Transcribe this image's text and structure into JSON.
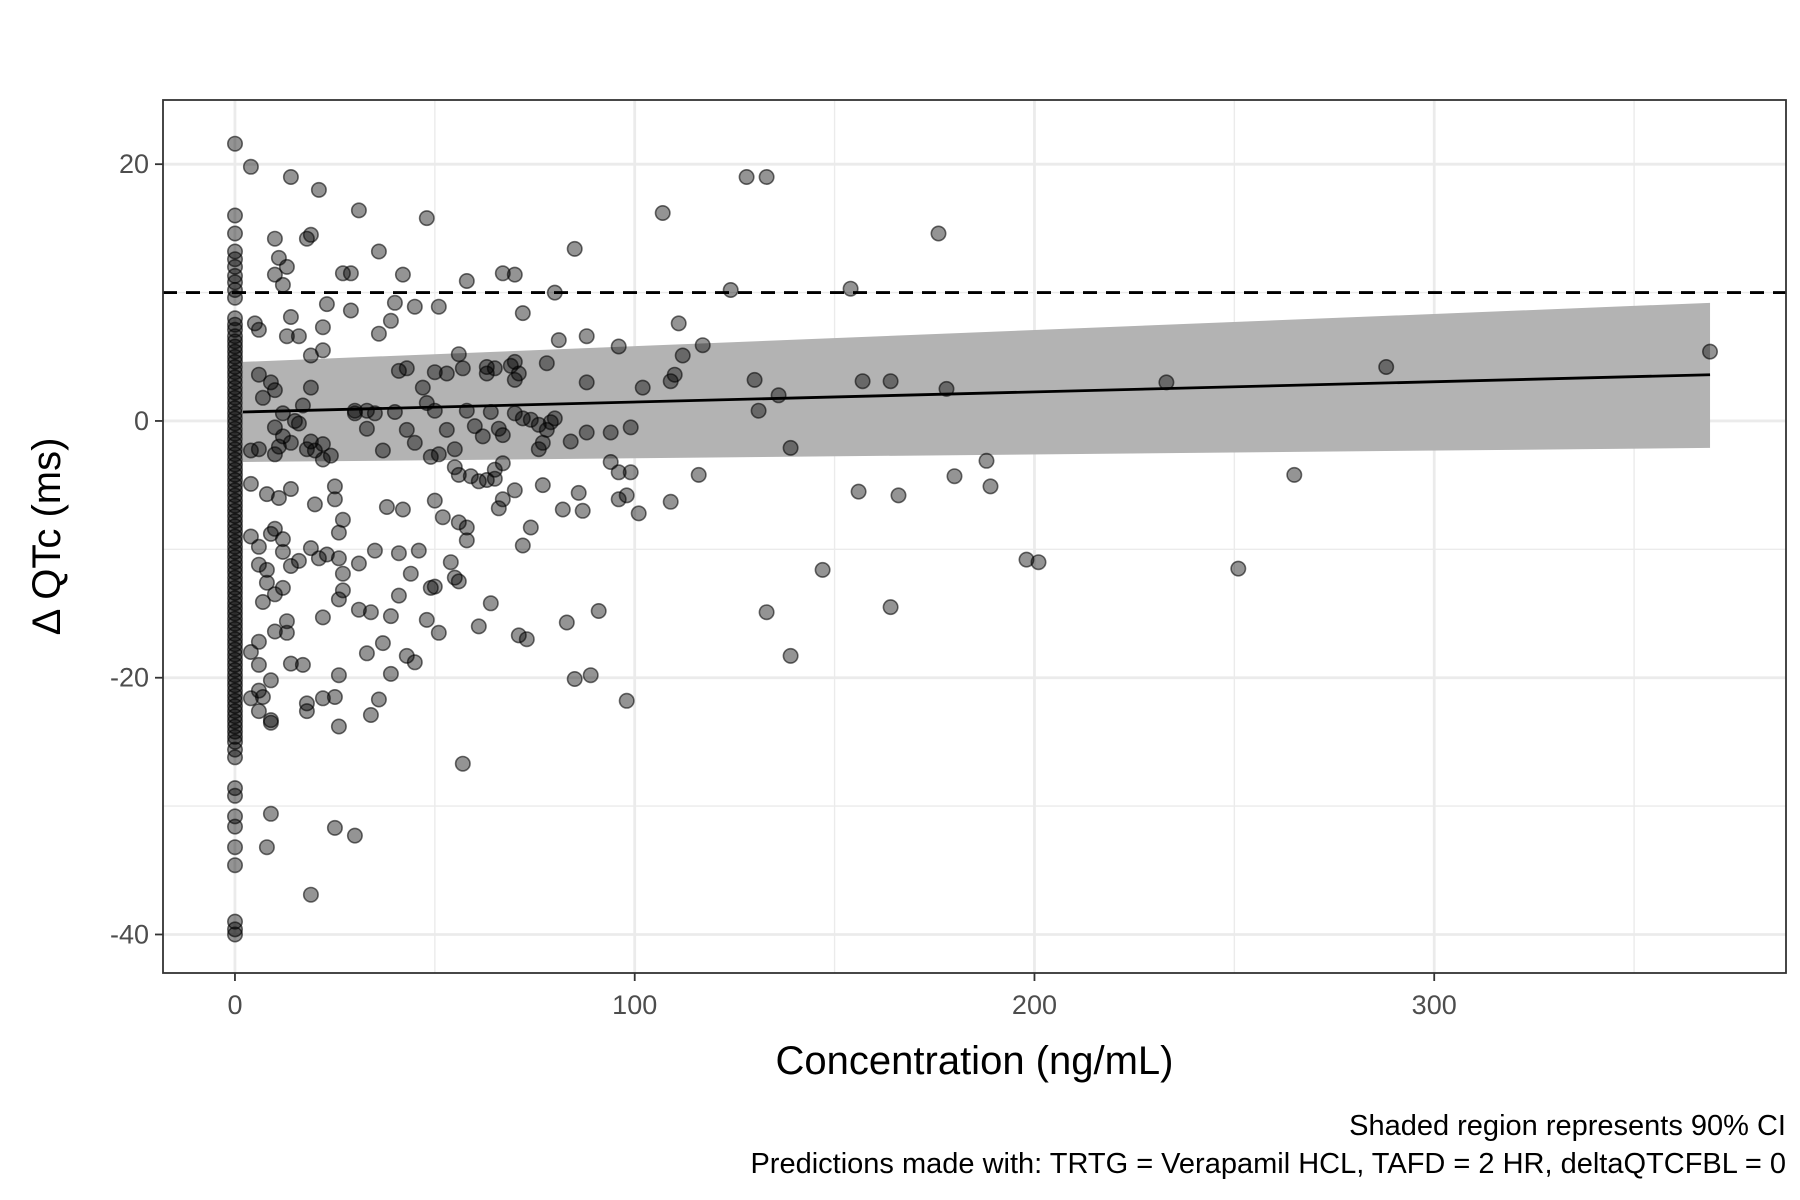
{
  "chart_data": {
    "type": "scatter",
    "title": "",
    "xlabel": "Concentration (ng/mL)",
    "ylabel": "Δ QTc (ms)",
    "xlim": [
      -18,
      388
    ],
    "ylim": [
      -43,
      25
    ],
    "x_ticks": [
      0,
      100,
      200,
      300
    ],
    "x_tick_labels": [
      "0",
      "100",
      "200",
      "300"
    ],
    "y_ticks": [
      -40,
      -20,
      0,
      20
    ],
    "y_tick_labels": [
      "-40",
      "-20",
      "0",
      "20"
    ],
    "x_minor_grid": [
      50,
      150,
      250,
      350
    ],
    "y_minor_grid": [
      -30,
      -10,
      10
    ],
    "grid": true,
    "reference_line": {
      "y": 10,
      "style": "dashed",
      "color": "#000000"
    },
    "regression_line": {
      "x": [
        2,
        369
      ],
      "y": [
        0.7,
        3.6
      ],
      "color": "#000000"
    },
    "confidence_band": {
      "x": [
        2,
        369
      ],
      "lower": [
        -3.2,
        -2.1
      ],
      "upper": [
        4.6,
        9.2
      ],
      "color": "#b3b3b3"
    },
    "point_color": "#000000",
    "point_opacity": 0.42,
    "captions": [
      "Shaded region represents 90% CI",
      "Predictions made with: TRTG = Verapamil HCL, TAFD = 2 HR, deltaQTCFBL = 0"
    ],
    "points": [
      [
        0,
        21.6
      ],
      [
        0,
        16
      ],
      [
        0,
        14.6
      ],
      [
        0,
        13.2
      ],
      [
        0,
        12.6
      ],
      [
        0,
        12
      ],
      [
        0,
        11.3
      ],
      [
        0,
        10.8
      ],
      [
        0,
        10.2
      ],
      [
        0,
        9.6
      ],
      [
        0,
        8
      ],
      [
        0,
        7.5
      ],
      [
        0,
        7.1
      ],
      [
        0,
        6.6
      ],
      [
        0,
        6.2
      ],
      [
        0,
        5.8
      ],
      [
        0,
        5.4
      ],
      [
        0,
        5
      ],
      [
        0,
        4.6
      ],
      [
        0,
        4.2
      ],
      [
        0,
        3.8
      ],
      [
        0,
        3.4
      ],
      [
        0,
        3
      ],
      [
        0,
        2.6
      ],
      [
        0,
        2.2
      ],
      [
        0,
        1.8
      ],
      [
        0,
        1.4
      ],
      [
        0,
        1
      ],
      [
        0,
        0.6
      ],
      [
        0,
        0.2
      ],
      [
        0,
        -0.2
      ],
      [
        0,
        -0.6
      ],
      [
        0,
        -1
      ],
      [
        0,
        -1.4
      ],
      [
        0,
        -1.8
      ],
      [
        0,
        -2.2
      ],
      [
        0,
        -2.6
      ],
      [
        0,
        -3
      ],
      [
        0,
        -3.4
      ],
      [
        0,
        -3.8
      ],
      [
        0,
        -4.2
      ],
      [
        0,
        -4.6
      ],
      [
        0,
        -5
      ],
      [
        0,
        -5.4
      ],
      [
        0,
        -5.8
      ],
      [
        0,
        -6.2
      ],
      [
        0,
        -6.6
      ],
      [
        0,
        -7
      ],
      [
        0,
        -7.4
      ],
      [
        0,
        -7.8
      ],
      [
        0,
        -8.2
      ],
      [
        0,
        -8.6
      ],
      [
        0,
        -9
      ],
      [
        0,
        -9.4
      ],
      [
        0,
        -9.8
      ],
      [
        0,
        -10.2
      ],
      [
        0,
        -10.6
      ],
      [
        0,
        -11
      ],
      [
        0,
        -11.4
      ],
      [
        0,
        -11.8
      ],
      [
        0,
        -12.2
      ],
      [
        0,
        -12.6
      ],
      [
        0,
        -13
      ],
      [
        0,
        -13.4
      ],
      [
        0,
        -13.8
      ],
      [
        0,
        -14.2
      ],
      [
        0,
        -14.6
      ],
      [
        0,
        -15
      ],
      [
        0,
        -15.4
      ],
      [
        0,
        -15.8
      ],
      [
        0,
        -16.2
      ],
      [
        0,
        -16.6
      ],
      [
        0,
        -17
      ],
      [
        0,
        -17.4
      ],
      [
        0,
        -17.8
      ],
      [
        0,
        -18.2
      ],
      [
        0,
        -18.6
      ],
      [
        0,
        -19
      ],
      [
        0,
        -19.4
      ],
      [
        0,
        -19.8
      ],
      [
        0,
        -20.2
      ],
      [
        0,
        -20.6
      ],
      [
        0,
        -21
      ],
      [
        0,
        -21.4
      ],
      [
        0,
        -21.8
      ],
      [
        0,
        -22.2
      ],
      [
        0,
        -22.6
      ],
      [
        0,
        -23
      ],
      [
        0,
        -23.4
      ],
      [
        0,
        -23.8
      ],
      [
        0,
        -24.2
      ],
      [
        0,
        -24.6
      ],
      [
        0,
        -25
      ],
      [
        0,
        -25.6
      ],
      [
        0,
        -26.2
      ],
      [
        0,
        -28.6
      ],
      [
        0,
        -29.2
      ],
      [
        0,
        -30.8
      ],
      [
        0,
        -31.6
      ],
      [
        0,
        -33.2
      ],
      [
        0,
        -34.6
      ],
      [
        0,
        -39
      ],
      [
        0,
        -39.6
      ],
      [
        0,
        -40
      ],
      [
        4,
        19.8
      ],
      [
        14,
        19
      ],
      [
        21,
        18
      ],
      [
        31,
        16.4
      ],
      [
        19,
        14.5
      ],
      [
        10,
        14.2
      ],
      [
        18,
        14.2
      ],
      [
        11,
        12.7
      ],
      [
        13,
        12
      ],
      [
        10,
        11.4
      ],
      [
        27,
        11.5
      ],
      [
        29,
        11.5
      ],
      [
        12,
        10.6
      ],
      [
        23,
        9.1
      ],
      [
        29,
        8.6
      ],
      [
        5,
        7.6
      ],
      [
        14,
        8.1
      ],
      [
        6,
        7.1
      ],
      [
        22,
        7.3
      ],
      [
        16,
        6.6
      ],
      [
        13,
        6.6
      ],
      [
        22,
        5.5
      ],
      [
        19,
        5.1
      ],
      [
        6,
        3.6
      ],
      [
        10,
        2.4
      ],
      [
        9,
        3
      ],
      [
        7,
        1.8
      ],
      [
        12,
        0.6
      ],
      [
        17,
        1.2
      ],
      [
        19,
        2.6
      ],
      [
        15,
        0
      ],
      [
        10,
        -0.5
      ],
      [
        12,
        -1.2
      ],
      [
        11,
        -2
      ],
      [
        10,
        -2.6
      ],
      [
        6,
        -2.2
      ],
      [
        4,
        -2.3
      ],
      [
        14,
        -1.7
      ],
      [
        18,
        -2.2
      ],
      [
        19,
        -1.6
      ],
      [
        16,
        -0.2
      ],
      [
        22,
        -1.8
      ],
      [
        20,
        -2.3
      ],
      [
        24,
        -2.7
      ],
      [
        22,
        -3
      ],
      [
        4,
        -4.9
      ],
      [
        8,
        -5.7
      ],
      [
        11,
        -6
      ],
      [
        14,
        -5.3
      ],
      [
        20,
        -6.5
      ],
      [
        25,
        -5.1
      ],
      [
        25,
        -6.1
      ],
      [
        27,
        -7.7
      ],
      [
        26,
        -8.7
      ],
      [
        4,
        -9
      ],
      [
        6,
        -9.8
      ],
      [
        9,
        -8.8
      ],
      [
        10,
        -8.4
      ],
      [
        12,
        -9.2
      ],
      [
        6,
        -11.2
      ],
      [
        8,
        -11.6
      ],
      [
        8,
        -12.6
      ],
      [
        12,
        -10.2
      ],
      [
        14,
        -11.3
      ],
      [
        16,
        -10.9
      ],
      [
        19,
        -9.9
      ],
      [
        21,
        -10.7
      ],
      [
        23,
        -10.4
      ],
      [
        26,
        -10.7
      ],
      [
        27,
        -11.9
      ],
      [
        10,
        -13.5
      ],
      [
        7,
        -14.1
      ],
      [
        12,
        -13
      ],
      [
        26,
        -13.9
      ],
      [
        27,
        -13.2
      ],
      [
        22,
        -15.3
      ],
      [
        10,
        -16.4
      ],
      [
        13,
        -15.6
      ],
      [
        13,
        -16.5
      ],
      [
        6,
        -17.2
      ],
      [
        4,
        -18
      ],
      [
        6,
        -19
      ],
      [
        14,
        -18.9
      ],
      [
        17,
        -19
      ],
      [
        9,
        -20.2
      ],
      [
        6,
        -21
      ],
      [
        4,
        -21.6
      ],
      [
        7,
        -21.5
      ],
      [
        22,
        -21.6
      ],
      [
        18,
        -22
      ],
      [
        18,
        -22.6
      ],
      [
        25,
        -21.5
      ],
      [
        6,
        -22.6
      ],
      [
        9,
        -23.3
      ],
      [
        9,
        -23.5
      ],
      [
        26,
        -23.8
      ],
      [
        26,
        -19.8
      ],
      [
        9,
        -30.6
      ],
      [
        8,
        -33.2
      ],
      [
        25,
        -31.7
      ],
      [
        30,
        -32.3
      ],
      [
        19,
        -36.9
      ],
      [
        48,
        15.8
      ],
      [
        36,
        13.2
      ],
      [
        42,
        11.4
      ],
      [
        58,
        10.9
      ],
      [
        67,
        11.5
      ],
      [
        70,
        11.4
      ],
      [
        85,
        13.4
      ],
      [
        107,
        16.2
      ],
      [
        128,
        19
      ],
      [
        133,
        19
      ],
      [
        176,
        14.6
      ],
      [
        40,
        9.2
      ],
      [
        45,
        8.9
      ],
      [
        51,
        8.9
      ],
      [
        72,
        8.4
      ],
      [
        80,
        10
      ],
      [
        124,
        10.2
      ],
      [
        154,
        10.3
      ],
      [
        36,
        6.8
      ],
      [
        39,
        7.8
      ],
      [
        56,
        5.2
      ],
      [
        65,
        4.1
      ],
      [
        63,
        4.2
      ],
      [
        69,
        4.3
      ],
      [
        70,
        4.6
      ],
      [
        78,
        4.5
      ],
      [
        81,
        6.3
      ],
      [
        88,
        6.6
      ],
      [
        96,
        5.8
      ],
      [
        111,
        7.6
      ],
      [
        112,
        5.1
      ],
      [
        117,
        5.9
      ],
      [
        41,
        3.9
      ],
      [
        43,
        4.1
      ],
      [
        50,
        3.8
      ],
      [
        53,
        3.7
      ],
      [
        57,
        4.1
      ],
      [
        63,
        3.7
      ],
      [
        70,
        3.2
      ],
      [
        71,
        3.7
      ],
      [
        88,
        3
      ],
      [
        102,
        2.6
      ],
      [
        110,
        3.6
      ],
      [
        109,
        3.1
      ],
      [
        130,
        3.2
      ],
      [
        136,
        2
      ],
      [
        131,
        0.8
      ],
      [
        157,
        3.1
      ],
      [
        164,
        3.1
      ],
      [
        178,
        2.5
      ],
      [
        233,
        3
      ],
      [
        288,
        4.2
      ],
      [
        369,
        5.4
      ],
      [
        30,
        0.8
      ],
      [
        33,
        0.8
      ],
      [
        35,
        0.6
      ],
      [
        33,
        -0.6
      ],
      [
        30,
        0.6
      ],
      [
        37,
        -2.3
      ],
      [
        40,
        0.7
      ],
      [
        43,
        -0.7
      ],
      [
        45,
        -1.7
      ],
      [
        47,
        2.6
      ],
      [
        48,
        1.4
      ],
      [
        50,
        0.8
      ],
      [
        53,
        -0.7
      ],
      [
        55,
        -2.2
      ],
      [
        58,
        0.8
      ],
      [
        60,
        -0.4
      ],
      [
        62,
        -1.2
      ],
      [
        64,
        0.7
      ],
      [
        66,
        -0.6
      ],
      [
        67,
        -1.1
      ],
      [
        70,
        0.6
      ],
      [
        72,
        0.2
      ],
      [
        74,
        0.1
      ],
      [
        76,
        -0.3
      ],
      [
        78,
        -0.7
      ],
      [
        79,
        -0.1
      ],
      [
        80,
        0.2
      ],
      [
        84,
        -1.6
      ],
      [
        88,
        -0.9
      ],
      [
        94,
        -0.9
      ],
      [
        99,
        -0.5
      ],
      [
        76,
        -2.2
      ],
      [
        77,
        -1.7
      ],
      [
        51,
        -2.6
      ],
      [
        49,
        -2.8
      ],
      [
        67,
        -3.3
      ],
      [
        139,
        -2.1
      ],
      [
        55,
        -3.6
      ],
      [
        56,
        -4.2
      ],
      [
        59,
        -4.3
      ],
      [
        61,
        -4.7
      ],
      [
        63,
        -4.6
      ],
      [
        65,
        -4.5
      ],
      [
        65,
        -3.8
      ],
      [
        94,
        -3.2
      ],
      [
        96,
        -4
      ],
      [
        99,
        -4
      ],
      [
        116,
        -4.2
      ],
      [
        180,
        -4.3
      ],
      [
        265,
        -4.2
      ],
      [
        42,
        -6.9
      ],
      [
        38,
        -6.7
      ],
      [
        50,
        -6.2
      ],
      [
        52,
        -7.5
      ],
      [
        56,
        -7.9
      ],
      [
        58,
        -8.3
      ],
      [
        66,
        -6.8
      ],
      [
        67,
        -6.1
      ],
      [
        70,
        -5.4
      ],
      [
        77,
        -5
      ],
      [
        82,
        -6.9
      ],
      [
        86,
        -5.6
      ],
      [
        87,
        -7
      ],
      [
        96,
        -6.1
      ],
      [
        98,
        -5.8
      ],
      [
        101,
        -7.2
      ],
      [
        109,
        -6.3
      ],
      [
        156,
        -5.5
      ],
      [
        166,
        -5.8
      ],
      [
        188,
        -3.1
      ],
      [
        189,
        -5.1
      ],
      [
        58,
        -9.3
      ],
      [
        72,
        -9.7
      ],
      [
        74,
        -8.3
      ],
      [
        54,
        -11
      ],
      [
        55,
        -12.2
      ],
      [
        56,
        -12.5
      ],
      [
        49,
        -13
      ],
      [
        50,
        -12.9
      ],
      [
        44,
        -11.9
      ],
      [
        41,
        -10.3
      ],
      [
        46,
        -10.1
      ],
      [
        31,
        -11.1
      ],
      [
        35,
        -10.1
      ],
      [
        41,
        -13.6
      ],
      [
        34,
        -14.9
      ],
      [
        31,
        -14.7
      ],
      [
        39,
        -15.2
      ],
      [
        48,
        -15.5
      ],
      [
        51,
        -16.5
      ],
      [
        61,
        -16
      ],
      [
        64,
        -14.2
      ],
      [
        71,
        -16.7
      ],
      [
        73,
        -17
      ],
      [
        83,
        -15.7
      ],
      [
        89,
        -19.8
      ],
      [
        85,
        -20.1
      ],
      [
        91,
        -14.8
      ],
      [
        198,
        -10.8
      ],
      [
        201,
        -11
      ],
      [
        251,
        -11.5
      ],
      [
        147,
        -11.6
      ],
      [
        133,
        -14.9
      ],
      [
        164,
        -14.5
      ],
      [
        139,
        -18.3
      ],
      [
        98,
        -21.8
      ],
      [
        57,
        -26.7
      ],
      [
        33,
        -18.1
      ],
      [
        37,
        -17.3
      ],
      [
        43,
        -18.3
      ],
      [
        45,
        -18.8
      ],
      [
        39,
        -19.7
      ],
      [
        36,
        -21.7
      ],
      [
        34,
        -22.9
      ]
    ]
  }
}
